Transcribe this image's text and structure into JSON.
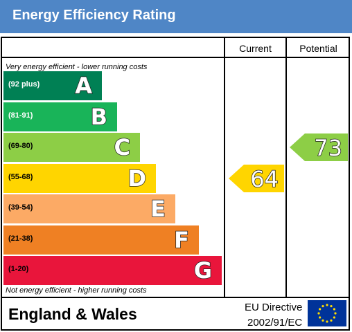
{
  "header": {
    "title": "Energy Efficiency Rating"
  },
  "columns": {
    "current": "Current",
    "potential": "Potential"
  },
  "notes": {
    "top": "Very energy efficient - lower running costs",
    "bottom": "Not energy efficient - higher running costs"
  },
  "chart_data": {
    "type": "bar",
    "title": "Energy Efficiency Rating",
    "bands": [
      {
        "letter": "A",
        "range": "(92 plus)",
        "color": "#008054",
        "text_color": "#ffffff"
      },
      {
        "letter": "B",
        "range": "(81-91)",
        "color": "#19b459",
        "text_color": "#ffffff"
      },
      {
        "letter": "C",
        "range": "(69-80)",
        "color": "#8dce46",
        "text_color": "#000000"
      },
      {
        "letter": "D",
        "range": "(55-68)",
        "color": "#ffd500",
        "text_color": "#000000"
      },
      {
        "letter": "E",
        "range": "(39-54)",
        "color": "#fcaa65",
        "text_color": "#000000"
      },
      {
        "letter": "F",
        "range": "(21-38)",
        "color": "#ef8023",
        "text_color": "#000000"
      },
      {
        "letter": "G",
        "range": "(1-20)",
        "color": "#e9153b",
        "text_color": "#000000"
      }
    ],
    "current": {
      "value": "64",
      "band": "D",
      "color": "#ffd500"
    },
    "potential": {
      "value": "73",
      "band": "C",
      "color": "#8dce46"
    }
  },
  "footer": {
    "region": "England & Wales",
    "directive_line1": "EU Directive",
    "directive_line2": "2002/91/EC",
    "flag_icon": "eu-flag-icon",
    "flag_color": "#003399",
    "star_color": "#ffdd00"
  }
}
